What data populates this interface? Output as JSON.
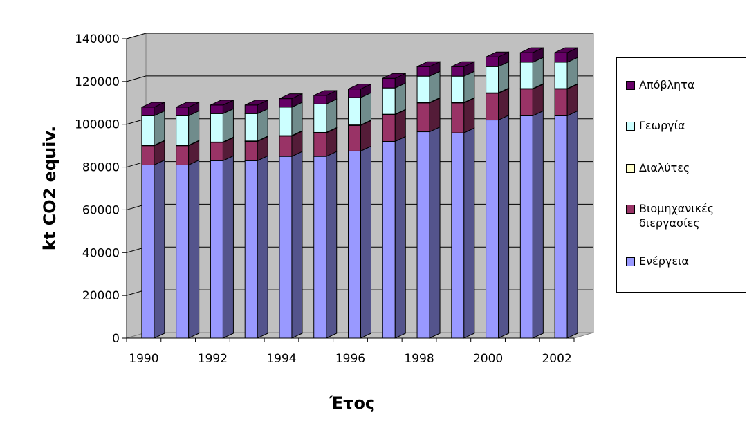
{
  "chart_data": {
    "type": "bar",
    "stacked": true,
    "three_d": true,
    "categories": [
      "1990",
      "1991",
      "1992",
      "1993",
      "1994",
      "1995",
      "1996",
      "1997",
      "1998",
      "1999",
      "2000",
      "2001",
      "2002"
    ],
    "x_tick_labels": [
      "1990",
      "1992",
      "1994",
      "1996",
      "1998",
      "2000",
      "2002"
    ],
    "xlabel": "Έτος",
    "ylabel": "kt CO2 equiv.",
    "ylim": [
      0,
      140000
    ],
    "y_ticks": [
      "0",
      "20000",
      "40000",
      "60000",
      "80000",
      "100000",
      "120000",
      "140000"
    ],
    "grid": true,
    "legend_position": "right",
    "series": [
      {
        "name": "Ενέργεια",
        "color": "#9999ff",
        "values": [
          81000,
          81000,
          83000,
          83000,
          85000,
          85000,
          87500,
          92000,
          96500,
          96000,
          102000,
          104000,
          104000
        ]
      },
      {
        "name": "Βιομηχανικές διεργασίες",
        "color": "#993366",
        "values": [
          9000,
          9000,
          8500,
          9000,
          9500,
          11000,
          12000,
          12500,
          13500,
          14000,
          12500,
          12500,
          12500
        ]
      },
      {
        "name": "Διαλύτες",
        "color": "#ffffcc",
        "values": [
          200,
          200,
          200,
          200,
          200,
          200,
          200,
          200,
          200,
          200,
          200,
          200,
          200
        ]
      },
      {
        "name": "Γεωργία",
        "color": "#ccffff",
        "values": [
          13800,
          13800,
          13300,
          12800,
          13300,
          13300,
          12800,
          12300,
          12300,
          12300,
          12300,
          12300,
          12300
        ]
      },
      {
        "name": "Απόβλητα",
        "color": "#660066",
        "values": [
          4000,
          4000,
          4000,
          4000,
          4000,
          4000,
          4000,
          4500,
          4500,
          4500,
          4500,
          4500,
          4500
        ]
      }
    ]
  }
}
